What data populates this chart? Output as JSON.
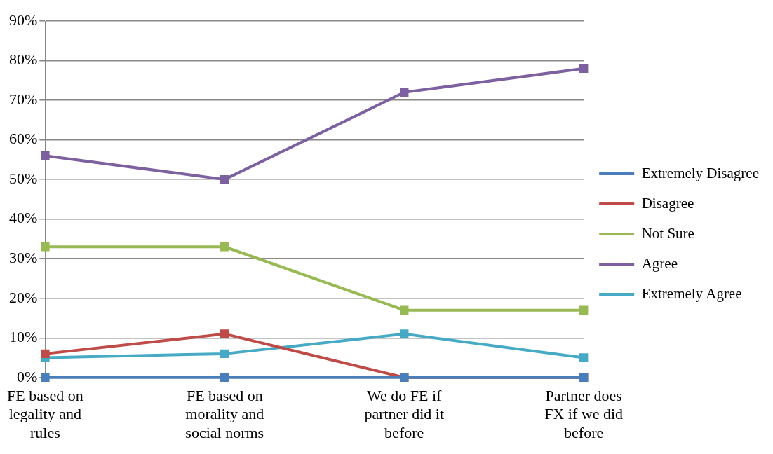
{
  "chart_data": {
    "type": "line",
    "categories": [
      "FE based on legality and rules",
      "FE based on morality and social norms",
      "We do FE if partner did it before",
      "Partner does FX if we did before"
    ],
    "series": [
      {
        "name": "Extremely Disagree",
        "color": "#4a7ebb",
        "values": [
          0,
          0,
          0,
          0
        ]
      },
      {
        "name": "Disagree",
        "color": "#be4b48",
        "values": [
          6,
          11,
          0,
          0
        ]
      },
      {
        "name": "Not Sure",
        "color": "#98b954",
        "values": [
          33,
          33,
          17,
          17
        ]
      },
      {
        "name": "Agree",
        "color": "#7d60a0",
        "values": [
          56,
          50,
          72,
          78
        ]
      },
      {
        "name": "Extremely Agree",
        "color": "#46aac5",
        "values": [
          5,
          6,
          11,
          5
        ]
      }
    ],
    "ylim": [
      0,
      90
    ],
    "yticks": [
      {
        "value": 0,
        "label": "0%"
      },
      {
        "value": 10,
        "label": "10%"
      },
      {
        "value": 20,
        "label": "20%"
      },
      {
        "value": 30,
        "label": "30%"
      },
      {
        "value": 40,
        "label": "40%"
      },
      {
        "value": 50,
        "label": "50%"
      },
      {
        "value": 60,
        "label": "60%"
      },
      {
        "value": 70,
        "label": "70%"
      },
      {
        "value": 80,
        "label": "80%"
      },
      {
        "value": 90,
        "label": "90%"
      }
    ],
    "grid": "y",
    "legend": "right",
    "marker": "square",
    "line_style": "solid"
  }
}
